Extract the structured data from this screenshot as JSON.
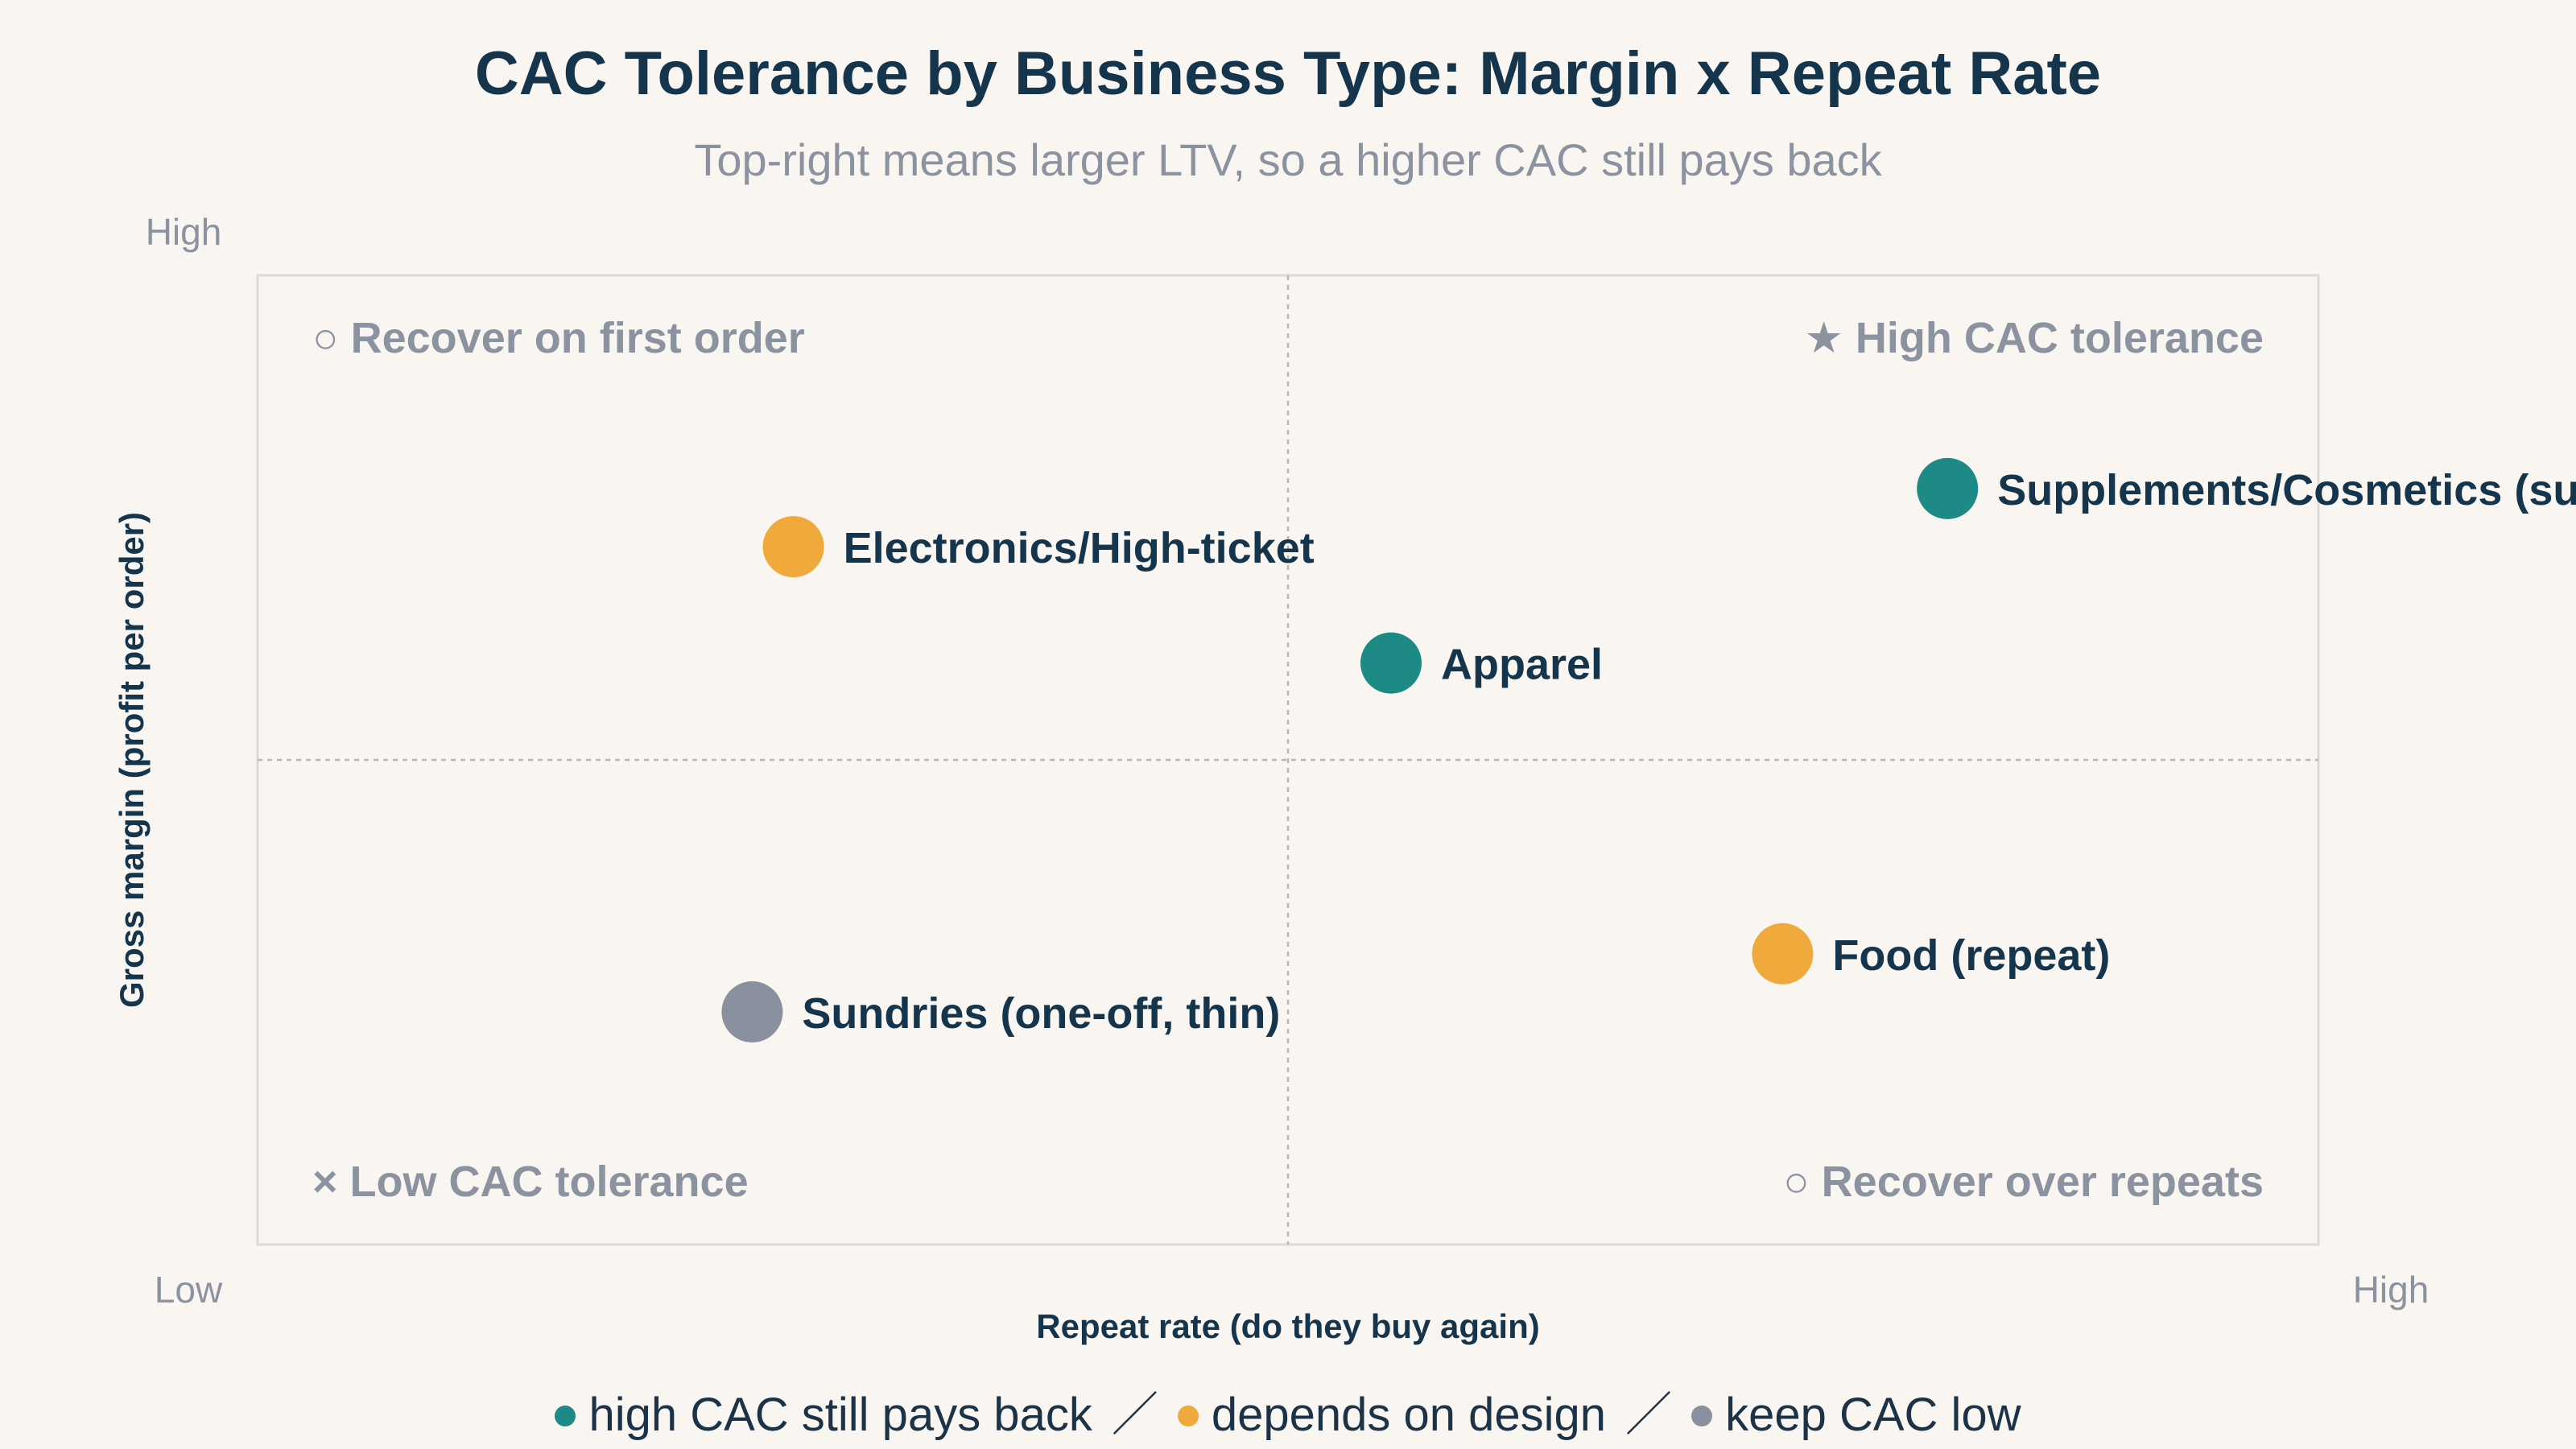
{
  "chart_data": {
    "type": "scatter",
    "title": "CAC Tolerance by Business Type: Margin x Repeat Rate",
    "subtitle": "Top-right means larger LTV, so a higher CAC still pays back",
    "xlabel": "Repeat rate (do they buy again)",
    "ylabel": "Gross margin (profit per order)",
    "xlim": [
      0,
      10
    ],
    "ylim": [
      0,
      10
    ],
    "x_ticks": {
      "low": "Low",
      "high": "High"
    },
    "y_ticks": {
      "low": "Low",
      "high": "High"
    },
    "grid": false,
    "midlines": {
      "x": 5,
      "y": 5
    },
    "quadrant_labels": {
      "top_left": "○ Recover on first order",
      "top_right": "★ High CAC tolerance",
      "bottom_left": "× Low CAC tolerance",
      "bottom_right": "○ Recover over repeats"
    },
    "points": [
      {
        "label": "Supplements/Cosmetics (sub)",
        "x": 8.2,
        "y": 7.8,
        "category": "high"
      },
      {
        "label": "Electronics/High-ticket",
        "x": 2.6,
        "y": 7.2,
        "category": "medium"
      },
      {
        "label": "Apparel",
        "x": 5.5,
        "y": 6.0,
        "category": "high"
      },
      {
        "label": "Food (repeat)",
        "x": 7.4,
        "y": 3.0,
        "category": "medium"
      },
      {
        "label": "Sundries (one-off, thin)",
        "x": 2.4,
        "y": 2.4,
        "category": "low"
      }
    ],
    "legend": [
      {
        "key": "high",
        "label": "high CAC still pays back",
        "color": "#1e8a86"
      },
      {
        "key": "medium",
        "label": "depends on design",
        "color": "#f0a93b"
      },
      {
        "key": "low",
        "label": "keep CAC low",
        "color": "#8a919e"
      }
    ],
    "legend_separator": "／",
    "legend_placement": "bottom"
  }
}
